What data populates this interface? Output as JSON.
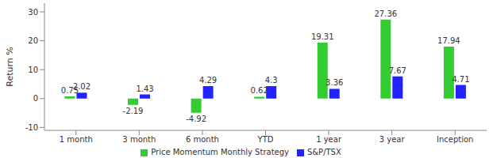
{
  "chart_data": {
    "type": "bar",
    "y_label": "Return %",
    "categories": [
      "1 month",
      "3 month",
      "6 month",
      "YTD",
      "1 year",
      "3 year",
      "Inception"
    ],
    "series": [
      {
        "name": "Price Momentum Monthly Strategy",
        "color": "#33cc33",
        "values": [
          0.75,
          -2.19,
          -4.92,
          0.62,
          19.31,
          27.36,
          17.94
        ]
      },
      {
        "name": "S&P/TSX",
        "color": "#2222ff",
        "values": [
          2.02,
          1.43,
          4.29,
          4.3,
          3.36,
          7.67,
          4.71
        ]
      }
    ],
    "ylim": [
      -11,
      33
    ],
    "yticks": [
      -10,
      0,
      10,
      20,
      30
    ],
    "grid": false,
    "legend": "bottom",
    "data_labels": true
  }
}
